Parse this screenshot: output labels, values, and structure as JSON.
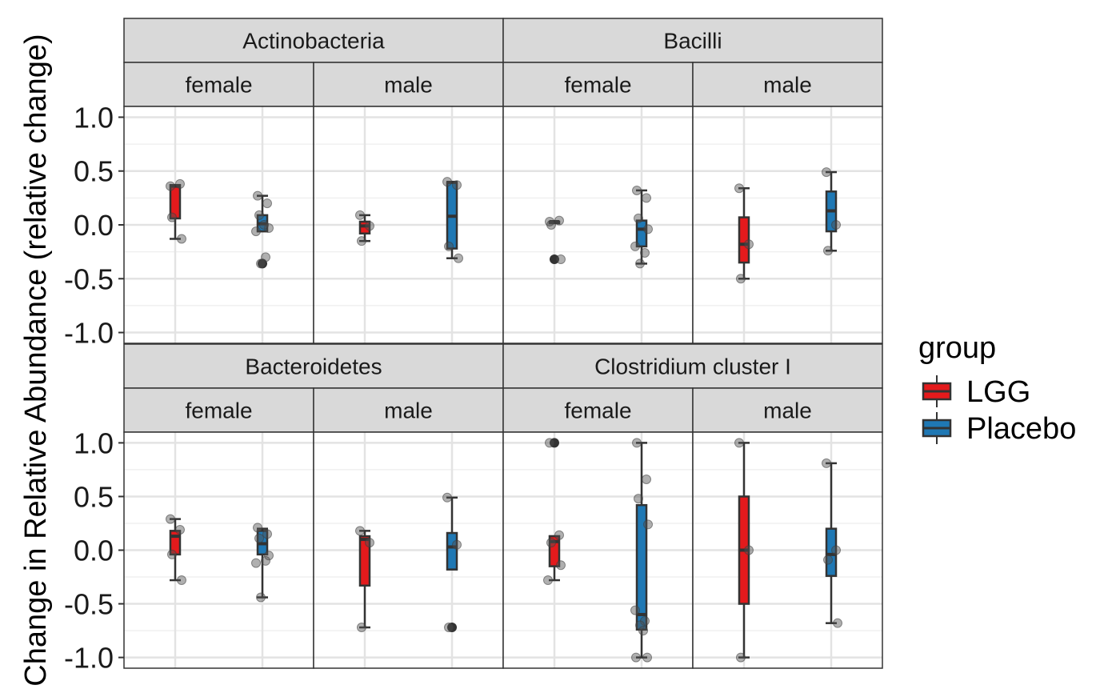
{
  "chart_data": {
    "type": "boxplot",
    "ylabel": "Change in Relative Abundance (relative change)",
    "ylim": [
      -1.1,
      1.1
    ],
    "y_ticks": [
      1.0,
      0.5,
      0.0,
      -0.5,
      -1.0
    ],
    "y_tick_labels": [
      "1.0",
      "0.5",
      "0.0",
      "-0.5",
      "-1.0"
    ],
    "grid": true,
    "legend": {
      "title": "group",
      "position": "right",
      "items": [
        {
          "label": "LGG",
          "color": "#e41a1c"
        },
        {
          "label": "Placebo",
          "color": "#1f78b4"
        }
      ]
    },
    "rows": [
      {
        "facets": [
          {
            "title": "Actinobacteria",
            "panels": [
              {
                "sex": "female",
                "boxes": [
                  {
                    "group": "LGG",
                    "q1": 0.06,
                    "median": 0.36,
                    "q3": 0.37,
                    "whisker_low": -0.13,
                    "whisker_high": 0.37,
                    "outliers": [],
                    "points": [
                      0.36,
                      0.38,
                      0.07,
                      -0.13
                    ]
                  },
                  {
                    "group": "Placebo",
                    "q1": -0.06,
                    "median": 0.01,
                    "q3": 0.09,
                    "whisker_low": -0.06,
                    "whisker_high": 0.27,
                    "outliers": [
                      -0.36
                    ],
                    "points": [
                      0.27,
                      0.2,
                      0.09,
                      -0.03,
                      -0.06,
                      -0.3,
                      -0.36,
                      0.0
                    ]
                  }
                ]
              },
              {
                "sex": "male",
                "boxes": [
                  {
                    "group": "LGG",
                    "q1": -0.08,
                    "median": -0.01,
                    "q3": 0.03,
                    "whisker_low": -0.15,
                    "whisker_high": 0.09,
                    "outliers": [],
                    "points": [
                      0.09,
                      -0.01,
                      -0.15
                    ]
                  },
                  {
                    "group": "Placebo",
                    "q1": -0.22,
                    "median": 0.08,
                    "q3": 0.39,
                    "whisker_low": -0.31,
                    "whisker_high": 0.4,
                    "outliers": [],
                    "points": [
                      0.4,
                      0.37,
                      -0.2,
                      -0.31
                    ]
                  }
                ]
              }
            ]
          },
          {
            "title": "Bacilli",
            "panels": [
              {
                "sex": "female",
                "boxes": [
                  {
                    "group": "LGG",
                    "q1": 0.02,
                    "median": 0.03,
                    "q3": 0.03,
                    "whisker_low": 0.02,
                    "whisker_high": 0.03,
                    "outliers": [
                      -0.32
                    ],
                    "points": [
                      0.03,
                      0.04,
                      0.0,
                      -0.32
                    ]
                  },
                  {
                    "group": "Placebo",
                    "q1": -0.2,
                    "median": -0.04,
                    "q3": 0.04,
                    "whisker_low": -0.36,
                    "whisker_high": 0.32,
                    "outliers": [],
                    "points": [
                      0.32,
                      0.25,
                      0.06,
                      -0.04,
                      -0.2,
                      -0.26,
                      -0.36
                    ]
                  }
                ]
              },
              {
                "sex": "male",
                "boxes": [
                  {
                    "group": "LGG",
                    "q1": -0.35,
                    "median": -0.18,
                    "q3": 0.07,
                    "whisker_low": -0.5,
                    "whisker_high": 0.34,
                    "outliers": [],
                    "points": [
                      0.34,
                      -0.18,
                      -0.5
                    ]
                  },
                  {
                    "group": "Placebo",
                    "q1": -0.06,
                    "median": 0.13,
                    "q3": 0.31,
                    "whisker_low": -0.24,
                    "whisker_high": 0.49,
                    "outliers": [],
                    "points": [
                      0.49,
                      0.0,
                      -0.24
                    ]
                  }
                ]
              }
            ]
          }
        ]
      },
      {
        "facets": [
          {
            "title": "Bacteroidetes",
            "panels": [
              {
                "sex": "female",
                "boxes": [
                  {
                    "group": "LGG",
                    "q1": -0.04,
                    "median": 0.13,
                    "q3": 0.18,
                    "whisker_low": -0.28,
                    "whisker_high": 0.29,
                    "outliers": [],
                    "points": [
                      0.29,
                      0.19,
                      -0.04,
                      -0.28
                    ]
                  },
                  {
                    "group": "Placebo",
                    "q1": -0.04,
                    "median": 0.06,
                    "q3": 0.18,
                    "whisker_low": -0.44,
                    "whisker_high": 0.2,
                    "outliers": [],
                    "points": [
                      0.21,
                      0.15,
                      0.11,
                      -0.05,
                      -0.12,
                      -0.1,
                      -0.44
                    ]
                  }
                ]
              },
              {
                "sex": "male",
                "boxes": [
                  {
                    "group": "LGG",
                    "q1": -0.33,
                    "median": 0.1,
                    "q3": 0.13,
                    "whisker_low": -0.72,
                    "whisker_high": 0.18,
                    "outliers": [],
                    "points": [
                      0.18,
                      0.07,
                      -0.72
                    ]
                  },
                  {
                    "group": "Placebo",
                    "q1": -0.18,
                    "median": 0.03,
                    "q3": 0.16,
                    "whisker_low": -0.18,
                    "whisker_high": 0.49,
                    "outliers": [
                      -0.72
                    ],
                    "points": [
                      0.49,
                      0.05,
                      -0.72
                    ]
                  }
                ]
              }
            ]
          },
          {
            "title": "Clostridium cluster I",
            "panels": [
              {
                "sex": "female",
                "boxes": [
                  {
                    "group": "LGG",
                    "q1": -0.15,
                    "median": 0.08,
                    "q3": 0.13,
                    "whisker_low": -0.28,
                    "whisker_high": 0.13,
                    "outliers": [
                      1.0
                    ],
                    "points": [
                      1.0,
                      0.14,
                      0.07,
                      -0.14,
                      -0.28
                    ]
                  },
                  {
                    "group": "Placebo",
                    "q1": -0.74,
                    "median": -0.6,
                    "q3": 0.42,
                    "whisker_low": -1.0,
                    "whisker_high": 1.0,
                    "outliers": [],
                    "points": [
                      1.0,
                      0.66,
                      0.48,
                      0.24,
                      -0.56,
                      -0.66,
                      -0.7,
                      -0.75,
                      -1.0,
                      -1.0
                    ]
                  }
                ]
              },
              {
                "sex": "male",
                "boxes": [
                  {
                    "group": "LGG",
                    "q1": -0.5,
                    "median": 0.0,
                    "q3": 0.5,
                    "whisker_low": -1.0,
                    "whisker_high": 1.0,
                    "outliers": [],
                    "points": [
                      1.0,
                      0.0,
                      -1.0
                    ]
                  },
                  {
                    "group": "Placebo",
                    "q1": -0.24,
                    "median": -0.04,
                    "q3": 0.2,
                    "whisker_low": -0.68,
                    "whisker_high": 0.81,
                    "outliers": [],
                    "points": [
                      0.81,
                      0.0,
                      -0.09,
                      -0.68
                    ]
                  }
                ]
              }
            ]
          }
        ]
      }
    ]
  }
}
